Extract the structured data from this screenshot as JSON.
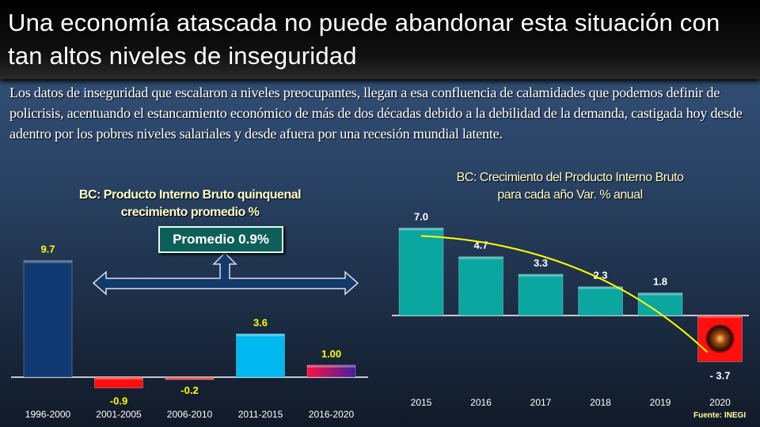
{
  "title": "Una economía atascada no puede abandonar esta situación con tan altos niveles de inseguridad",
  "paragraph": "Los datos de inseguridad que escalaron a niveles preocupantes, llegan a esa confluencia de calamidades que podemos definir de policrisis, acentuando el estancamiento económico de más de dos décadas debido a la debilidad de la demanda, castigada hoy desde adentro por los pobres niveles salariales y desde afuera por una recesión mundial latente.",
  "source": "Fuente: INEGI",
  "chart_data": [
    {
      "type": "bar",
      "title": "BC: Producto Interno Bruto quinquenal crecimiento promedio %",
      "title_lines": [
        "BC: Producto Interno Bruto quinquenal",
        "crecimiento promedio %"
      ],
      "categories": [
        "1996-2000",
        "2001-2005",
        "2006-2010",
        "2011-2015",
        "2016-2020"
      ],
      "values": [
        9.7,
        -0.9,
        -0.2,
        3.6,
        1.0
      ],
      "data_labels": [
        "9.7",
        "-0.9",
        "-0.2",
        "3.6",
        "1.00"
      ],
      "colors": [
        "#123a72",
        "#ff1010",
        "#ff1010",
        "#00b8f0",
        "#b0208a"
      ],
      "label_color": "#ffff00",
      "annotation": "Promedio 0.9%",
      "grid": false
    },
    {
      "type": "bar",
      "title": "BC: Crecimiento del Producto Interno Bruto para cada año Var. % anual",
      "title_lines": [
        "BC: Crecimiento del Producto Interno Bruto",
        "para cada año  Var. % anual"
      ],
      "categories": [
        "2015",
        "2016",
        "2017",
        "2018",
        "2019",
        "2020"
      ],
      "values": [
        7.0,
        4.7,
        3.3,
        2.3,
        1.8,
        -3.7
      ],
      "data_labels": [
        "7.0",
        "4.7",
        "3.3",
        "2.3",
        "1.8",
        "-   3.7"
      ],
      "colors": [
        "#0aa6a0",
        "#0aa6a0",
        "#0aa6a0",
        "#0aa6a0",
        "#0aa6a0",
        "#ff1010"
      ],
      "label_color": "#ffffff",
      "trendline_color": "#ffff00",
      "grid": false
    }
  ]
}
